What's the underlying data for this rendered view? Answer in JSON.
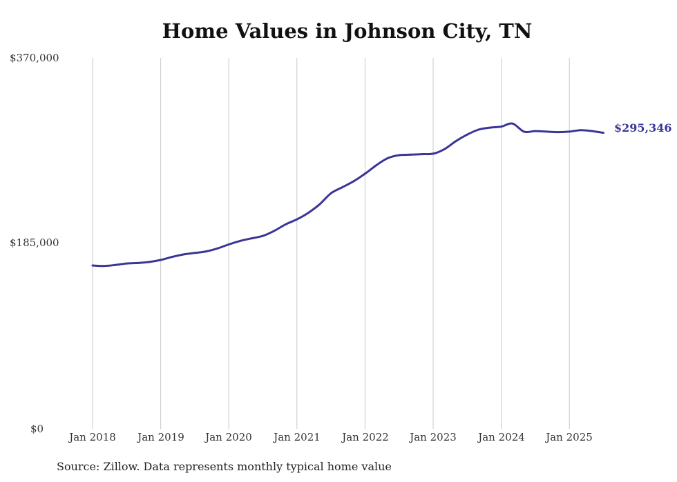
{
  "chart_data": {
    "type": "line",
    "title": "Home Values in Johnson City, TN",
    "ylim": [
      0,
      370000
    ],
    "y_ticks": [
      "$370,000",
      "$185,000",
      "$0"
    ],
    "y_tick_values": [
      370000,
      185000,
      0
    ],
    "x_ticks": [
      "Jan 2018",
      "Jan 2019",
      "Jan 2020",
      "Jan 2021",
      "Jan 2022",
      "Jan 2023",
      "Jan 2024",
      "Jan 2025"
    ],
    "x_tick_dates": [
      "2018-01",
      "2019-01",
      "2020-01",
      "2021-01",
      "2022-01",
      "2023-01",
      "2024-01",
      "2025-01"
    ],
    "grid": "vertical",
    "line_color": "#3a3596",
    "end_label": "$295,346",
    "series": [
      {
        "points": [
          [
            "2018-01",
            163000
          ],
          [
            "2018-03",
            162500
          ],
          [
            "2018-05",
            163500
          ],
          [
            "2018-07",
            165000
          ],
          [
            "2018-09",
            165500
          ],
          [
            "2018-11",
            166500
          ],
          [
            "2019-01",
            168500
          ],
          [
            "2019-03",
            171500
          ],
          [
            "2019-05",
            174000
          ],
          [
            "2019-07",
            175500
          ],
          [
            "2019-09",
            177000
          ],
          [
            "2019-11",
            180000
          ],
          [
            "2020-01",
            184000
          ],
          [
            "2020-03",
            187500
          ],
          [
            "2020-05",
            190000
          ],
          [
            "2020-07",
            192500
          ],
          [
            "2020-09",
            197500
          ],
          [
            "2020-11",
            204000
          ],
          [
            "2021-01",
            209000
          ],
          [
            "2021-03",
            215500
          ],
          [
            "2021-05",
            224000
          ],
          [
            "2021-07",
            235000
          ],
          [
            "2021-09",
            241000
          ],
          [
            "2021-11",
            247000
          ],
          [
            "2022-01",
            254500
          ],
          [
            "2022-03",
            263000
          ],
          [
            "2022-05",
            270000
          ],
          [
            "2022-07",
            273000
          ],
          [
            "2022-09",
            273500
          ],
          [
            "2022-11",
            274000
          ],
          [
            "2023-01",
            274500
          ],
          [
            "2023-03",
            279000
          ],
          [
            "2023-05",
            287000
          ],
          [
            "2023-07",
            293500
          ],
          [
            "2023-09",
            298500
          ],
          [
            "2023-11",
            300500
          ],
          [
            "2024-01",
            301500
          ],
          [
            "2024-03",
            304500
          ],
          [
            "2024-05",
            296500
          ],
          [
            "2024-07",
            297000
          ],
          [
            "2024-09",
            296500
          ],
          [
            "2024-11",
            296000
          ],
          [
            "2025-01",
            296500
          ],
          [
            "2025-03",
            298000
          ],
          [
            "2025-05",
            297000
          ],
          [
            "2025-07",
            295346
          ]
        ]
      }
    ]
  },
  "footer": {
    "source": "Source: Zillow. Data represents monthly typical home value"
  }
}
